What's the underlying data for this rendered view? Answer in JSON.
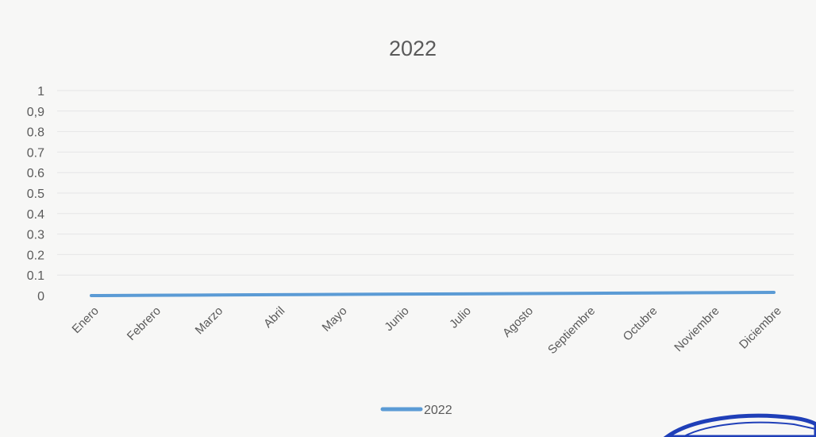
{
  "chart_data": {
    "type": "line",
    "title": "2022",
    "xlabel": "",
    "ylabel": "",
    "categories": [
      "Enero",
      "Febrero",
      "Marzo",
      "Abril",
      "Mayo",
      "Junio",
      "Julio",
      "Agosto",
      "Septiembre",
      "Octubre",
      "Noviembre",
      "Diciembre"
    ],
    "series": [
      {
        "name": "2022",
        "values": [
          0,
          0,
          0,
          0,
          0,
          0,
          0,
          0,
          0,
          0,
          0,
          0
        ],
        "color": "#5b9bd5"
      }
    ],
    "ylim": [
      0,
      1
    ],
    "yticks": [
      "1",
      "0,9",
      "0.8",
      "0.7",
      "0.6",
      "0.5",
      "0.4",
      "0.3",
      "0.2",
      "0.1",
      "0"
    ],
    "grid": true,
    "legend_position": "bottom",
    "stamp_color": "#1f3fb8"
  }
}
